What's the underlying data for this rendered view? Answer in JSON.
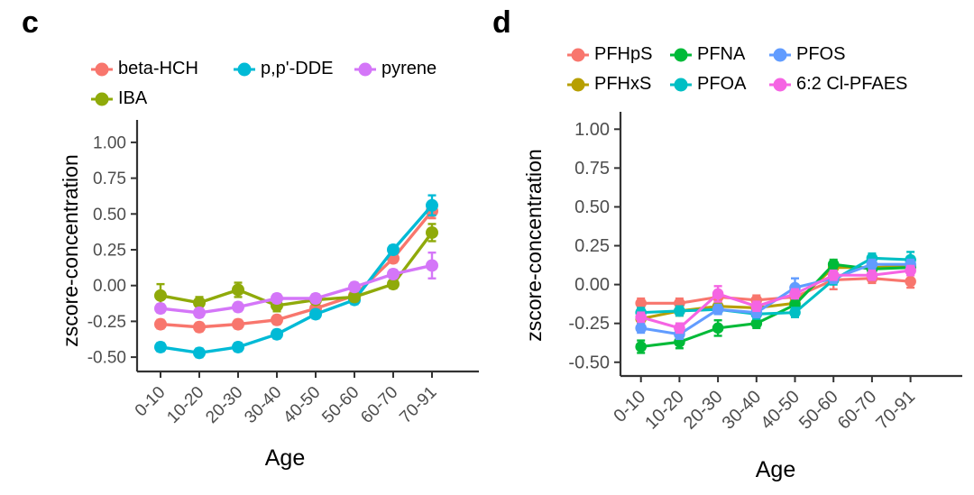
{
  "figure": {
    "background": "#ffffff",
    "axis_color": "#333333",
    "tick_label_color": "#4d4d4d",
    "axis_title_color": "#000000"
  },
  "panels": [
    {
      "letter": "c"
    },
    {
      "letter": "d"
    }
  ],
  "chart_data": [
    {
      "type": "line",
      "title": "",
      "xlabel": "Age",
      "ylabel": "zscore-concentration",
      "categories": [
        "0-10",
        "10-20",
        "20-30",
        "30-40",
        "40-50",
        "50-60",
        "60-70",
        "70-91"
      ],
      "yticks": [
        1.0,
        0.75,
        0.5,
        0.25,
        0.0,
        -0.25,
        -0.5
      ],
      "ylim": [
        -0.55,
        1.05
      ],
      "grid": false,
      "legend_position": "top",
      "error_bars": true,
      "legend_rows": [
        [
          0,
          1,
          3
        ],
        [
          2
        ]
      ],
      "series": [
        {
          "name": "beta-HCH",
          "color": "#F8766D",
          "values": [
            -0.27,
            -0.29,
            -0.27,
            -0.24,
            -0.16,
            -0.07,
            0.19,
            0.52
          ],
          "errors": [
            0.03,
            0.03,
            0.03,
            0.03,
            0.03,
            0.03,
            0.03,
            0.05
          ]
        },
        {
          "name": "p,p'-DDE",
          "color": "#00BAD6",
          "values": [
            -0.43,
            -0.47,
            -0.43,
            -0.34,
            -0.2,
            -0.1,
            0.25,
            0.56
          ],
          "errors": [
            0.03,
            0.03,
            0.03,
            0.03,
            0.03,
            0.03,
            0.03,
            0.07
          ]
        },
        {
          "name": "IBA",
          "color": "#8FAA0A",
          "values": [
            -0.07,
            -0.12,
            -0.03,
            -0.14,
            -0.1,
            -0.08,
            0.01,
            0.37
          ],
          "errors": [
            0.08,
            0.04,
            0.05,
            0.04,
            0.03,
            0.03,
            0.03,
            0.06
          ]
        },
        {
          "name": "pyrene",
          "color": "#D476F8",
          "values": [
            -0.16,
            -0.19,
            -0.15,
            -0.09,
            -0.09,
            -0.01,
            0.08,
            0.14
          ],
          "errors": [
            0.03,
            0.03,
            0.03,
            0.03,
            0.03,
            0.03,
            0.03,
            0.09
          ]
        }
      ]
    },
    {
      "type": "line",
      "title": "",
      "xlabel": "Age",
      "ylabel": "zscore-concentration",
      "categories": [
        "0-10",
        "10-20",
        "20-30",
        "30-40",
        "40-50",
        "50-60",
        "60-70",
        "70-91"
      ],
      "yticks": [
        1.0,
        0.75,
        0.5,
        0.25,
        0.0,
        -0.25,
        -0.5
      ],
      "ylim": [
        -0.55,
        1.05
      ],
      "grid": false,
      "legend_position": "top",
      "error_bars": true,
      "legend_rows": [
        [
          0,
          2,
          4
        ],
        [
          1,
          3,
          5
        ]
      ],
      "series": [
        {
          "name": "PFHpS",
          "color": "#F8766D",
          "values": [
            -0.12,
            -0.12,
            -0.08,
            -0.1,
            -0.08,
            0.03,
            0.04,
            0.02
          ],
          "errors": [
            0.03,
            0.03,
            0.03,
            0.03,
            0.03,
            0.06,
            0.03,
            0.04
          ]
        },
        {
          "name": "PFHxS",
          "color": "#B79F00",
          "values": [
            -0.22,
            -0.17,
            -0.14,
            -0.15,
            -0.12,
            0.11,
            0.11,
            0.12
          ],
          "errors": [
            0.03,
            0.03,
            0.03,
            0.03,
            0.03,
            0.03,
            0.03,
            0.03
          ]
        },
        {
          "name": "PFNA",
          "color": "#00BA38",
          "values": [
            -0.4,
            -0.37,
            -0.28,
            -0.25,
            -0.13,
            0.13,
            0.1,
            0.11
          ],
          "errors": [
            0.04,
            0.04,
            0.05,
            0.03,
            0.03,
            0.03,
            0.03,
            0.03
          ]
        },
        {
          "name": "PFOA",
          "color": "#00BFC4",
          "values": [
            -0.18,
            -0.17,
            -0.16,
            -0.19,
            -0.18,
            0.03,
            0.17,
            0.16
          ],
          "errors": [
            0.03,
            0.03,
            0.03,
            0.03,
            0.03,
            0.03,
            0.03,
            0.05
          ]
        },
        {
          "name": "PFOS",
          "color": "#619CFF",
          "values": [
            -0.28,
            -0.32,
            -0.16,
            -0.18,
            -0.02,
            0.04,
            0.13,
            0.13
          ],
          "errors": [
            0.03,
            0.03,
            0.03,
            0.03,
            0.06,
            0.03,
            0.03,
            0.03
          ]
        },
        {
          "name": "6:2 Cl-PFAES",
          "color": "#F564E3",
          "values": [
            -0.21,
            -0.28,
            -0.06,
            -0.14,
            -0.06,
            0.06,
            0.06,
            0.09
          ],
          "errors": [
            0.03,
            0.03,
            0.05,
            0.03,
            0.03,
            0.03,
            0.03,
            0.03
          ]
        }
      ]
    }
  ]
}
